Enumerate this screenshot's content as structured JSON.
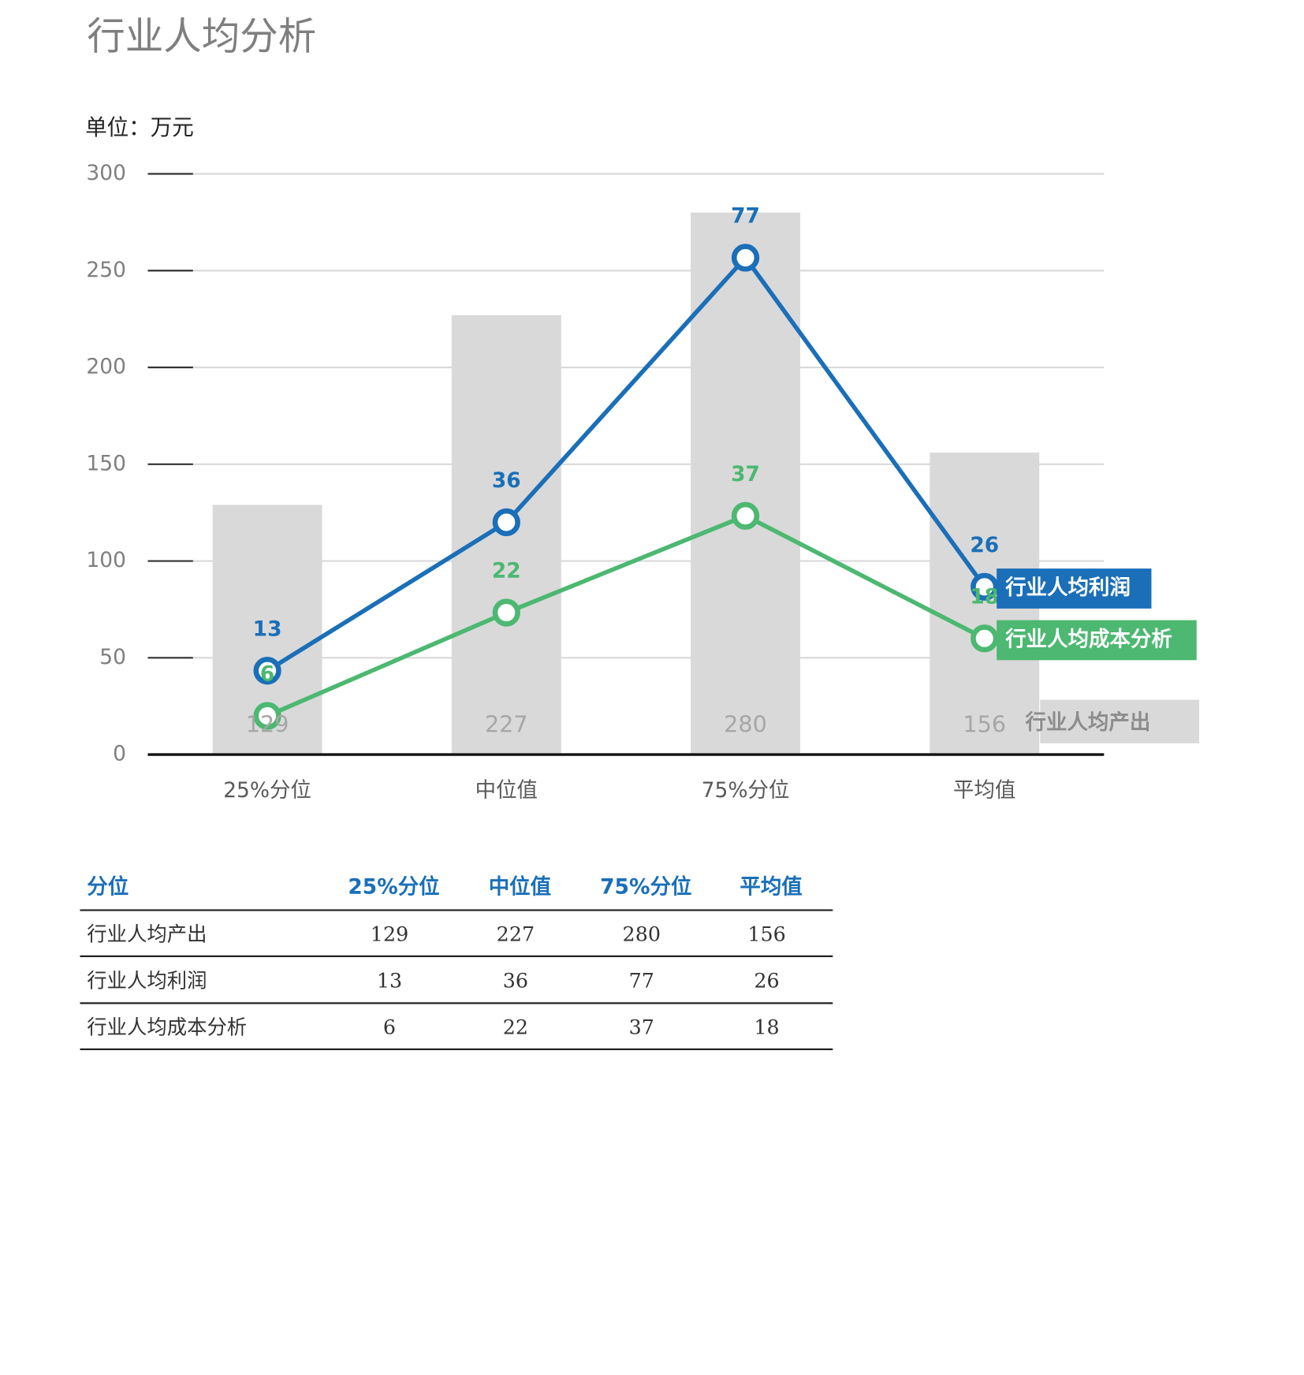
{
  "chart_data": {
    "type": "combo",
    "title": "行业人均分析",
    "unit_label": "单位：万元",
    "categories": [
      "25%分位",
      "中位值",
      "75%分位",
      "平均值"
    ],
    "ylim": [
      0,
      300
    ],
    "yticks": [
      0,
      50,
      100,
      150,
      200,
      250,
      300
    ],
    "y2lim": [
      0,
      90
    ],
    "grid": true,
    "series": [
      {
        "name": "行业人均产出",
        "type": "bar",
        "color": "#d9d9d9",
        "values": [
          129,
          227,
          280,
          156
        ]
      },
      {
        "name": "行业人均利润",
        "type": "line",
        "axis": "y2",
        "color": "#1a6fb8",
        "values": [
          13,
          36,
          77,
          26
        ]
      },
      {
        "name": "行业人均成本分析",
        "type": "line",
        "axis": "y2",
        "color": "#4cb871",
        "values": [
          6,
          22,
          37,
          18
        ]
      }
    ]
  },
  "table": {
    "header": [
      "分位",
      "25%分位",
      "中位值",
      "75%分位",
      "平均值"
    ],
    "rows": [
      [
        "行业人均产出",
        "129",
        "227",
        "280",
        "156"
      ],
      [
        "行业人均利润",
        "13",
        "36",
        "77",
        "26"
      ],
      [
        "行业人均成本分析",
        "6",
        "22",
        "37",
        "18"
      ]
    ]
  }
}
